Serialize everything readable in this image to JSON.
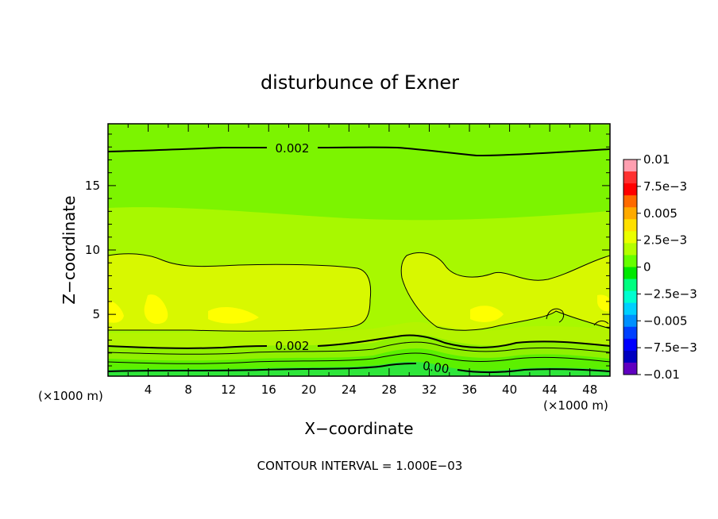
{
  "chart_data": {
    "type": "heatmap",
    "title": "disturbunce of Exner",
    "xlabel": "X−coordinate",
    "ylabel": "Z−coordinate",
    "x_unit_left": "(×1000 m)",
    "x_unit_right": "(×1000 m)",
    "footer": "CONTOUR INTERVAL = 1.000E−03",
    "xlim": [
      0,
      50
    ],
    "ylim": [
      0.2,
      19.8
    ],
    "x_ticks": [
      "4",
      "8",
      "12",
      "16",
      "20",
      "24",
      "28",
      "32",
      "36",
      "40",
      "44",
      "48"
    ],
    "y_ticks": [
      "5",
      "10",
      "15"
    ],
    "contour_labels": [
      "0.002",
      "0.002",
      "0.00"
    ],
    "colorbar": {
      "labels": [
        "0.01",
        "7.5e−3",
        "0.005",
        "2.5e−3",
        "0",
        "−2.5e−3",
        "−0.005",
        "−7.5e−3",
        "−0.01"
      ],
      "range": [
        -0.01,
        0.01
      ],
      "colors": [
        "#ff9fb0",
        "#ff3030",
        "#ff0000",
        "#ff6a00",
        "#ffaa00",
        "#ffe000",
        "#eaff00",
        "#b4ff00",
        "#66ff00",
        "#00e800",
        "#00ff80",
        "#00ffd0",
        "#00d0ff",
        "#0090ff",
        "#0040ff",
        "#0000ff",
        "#0000c0",
        "#6000c0"
      ]
    },
    "field": {
      "levels": [
        {
          "range": [
            0.003,
            0.004
          ],
          "color": "#ffff00"
        },
        {
          "range": [
            0.002,
            0.003
          ],
          "color": "#d8f800"
        },
        {
          "range": [
            0.001,
            0.002
          ],
          "color": "#a8f800"
        },
        {
          "range": [
            0.0,
            0.001
          ],
          "color": "#7cf400"
        },
        {
          "range": [
            -0.001,
            0.0
          ],
          "color": "#00e84a"
        }
      ]
    }
  }
}
